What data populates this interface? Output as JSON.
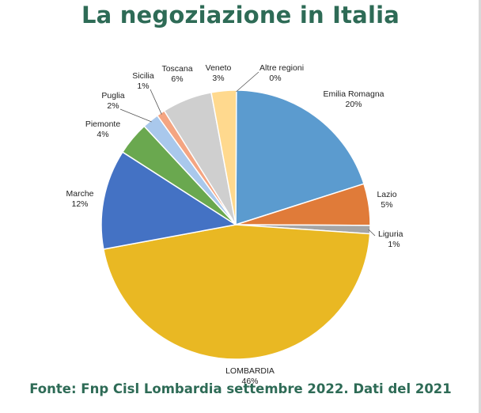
{
  "header": {
    "title": "La negoziazione in Italia"
  },
  "footer": {
    "source": "Fonte: Fnp Cisl Lombardia settembre 2022. Dati del 2021"
  },
  "chart_data": {
    "type": "pie",
    "title": "La negoziazione in Italia",
    "unit": "%",
    "slices": [
      {
        "name": "Altre regioni",
        "value": 0,
        "label": "0%",
        "color": "#8fb3d9"
      },
      {
        "name": "Emilia Romagna",
        "value": 20,
        "label": "20%",
        "color": "#5b9bcf"
      },
      {
        "name": "Lazio",
        "value": 5,
        "label": "5%",
        "color": "#e07b39"
      },
      {
        "name": "Liguria",
        "value": 1,
        "label": "1%",
        "color": "#a5a5a5"
      },
      {
        "name": "LOMBARDIA",
        "value": 46,
        "label": "46%",
        "color": "#e9b823"
      },
      {
        "name": "Marche",
        "value": 12,
        "label": "12%",
        "color": "#4472c4"
      },
      {
        "name": "Piemonte",
        "value": 4,
        "label": "4%",
        "color": "#6aa84f"
      },
      {
        "name": "Puglia",
        "value": 2,
        "label": "2%",
        "color": "#a9c8ec"
      },
      {
        "name": "Sicilia",
        "value": 1,
        "label": "1%",
        "color": "#f4a582"
      },
      {
        "name": "Toscana",
        "value": 6,
        "label": "6%",
        "color": "#cfcfcf"
      },
      {
        "name": "Veneto",
        "value": 3,
        "label": "3%",
        "color": "#ffd98e"
      }
    ]
  }
}
